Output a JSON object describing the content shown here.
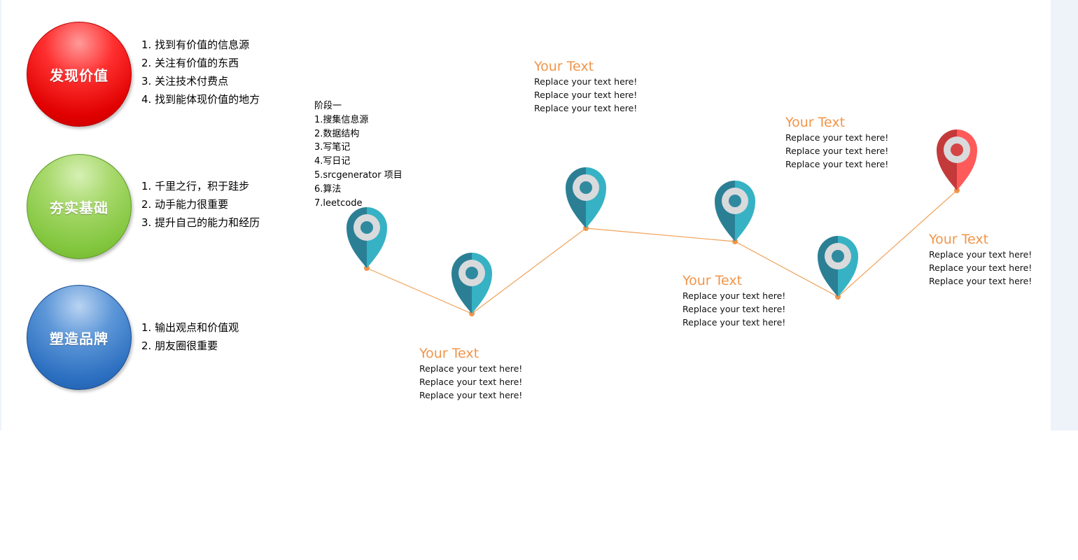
{
  "pillars": [
    {
      "label": "发现价值",
      "items": [
        "1. 找到有价值的信息源",
        "2. 关注有价值的东西",
        "3. 关注技术付费点",
        "4. 找到能体现价值的地方"
      ]
    },
    {
      "label": "夯实基础",
      "items": [
        "1. 千里之行，积于跬步",
        "2. 动手能力很重要",
        "3. 提升自己的能力和经历"
      ]
    },
    {
      "label": "塑造品牌",
      "items": [
        "1. 输出观点和价值观",
        "2. 朋友圈很重要"
      ]
    }
  ],
  "stage": {
    "title": "阶段一",
    "items": [
      "1.搜集信息源",
      "2.数据结构",
      "3.写笔记",
      "4.写日记",
      "5.srcgenerator 项目",
      "6.算法",
      "7.leetcode"
    ]
  },
  "callouts": [
    {
      "title": "Your Text",
      "lines": [
        "Replace your text here!",
        "Replace your text here!",
        "Replace your text here!"
      ]
    },
    {
      "title": "Your Text",
      "lines": [
        "Replace your text here!",
        "Replace your text here!",
        "Replace your text here!"
      ]
    },
    {
      "title": "Your Text",
      "lines": [
        "Replace your text here!",
        "Replace your text here!",
        "Replace your text here!"
      ]
    },
    {
      "title": "Your Text",
      "lines": [
        "Replace your text here!",
        "Replace your text here!",
        "Replace your text here!"
      ]
    },
    {
      "title": "Your Text",
      "lines": [
        "Replace your text here!",
        "Replace your text here!",
        "Replace your text here!"
      ]
    }
  ],
  "colors": {
    "accent_orange": "#f0954a",
    "pin_teal": "#36b2c4",
    "pin_teal_dark": "#2b7f95",
    "pin_red": "#ff5a5a",
    "pin_red_dark": "#c43a3a"
  },
  "icons": [
    "map-pin-icon"
  ]
}
